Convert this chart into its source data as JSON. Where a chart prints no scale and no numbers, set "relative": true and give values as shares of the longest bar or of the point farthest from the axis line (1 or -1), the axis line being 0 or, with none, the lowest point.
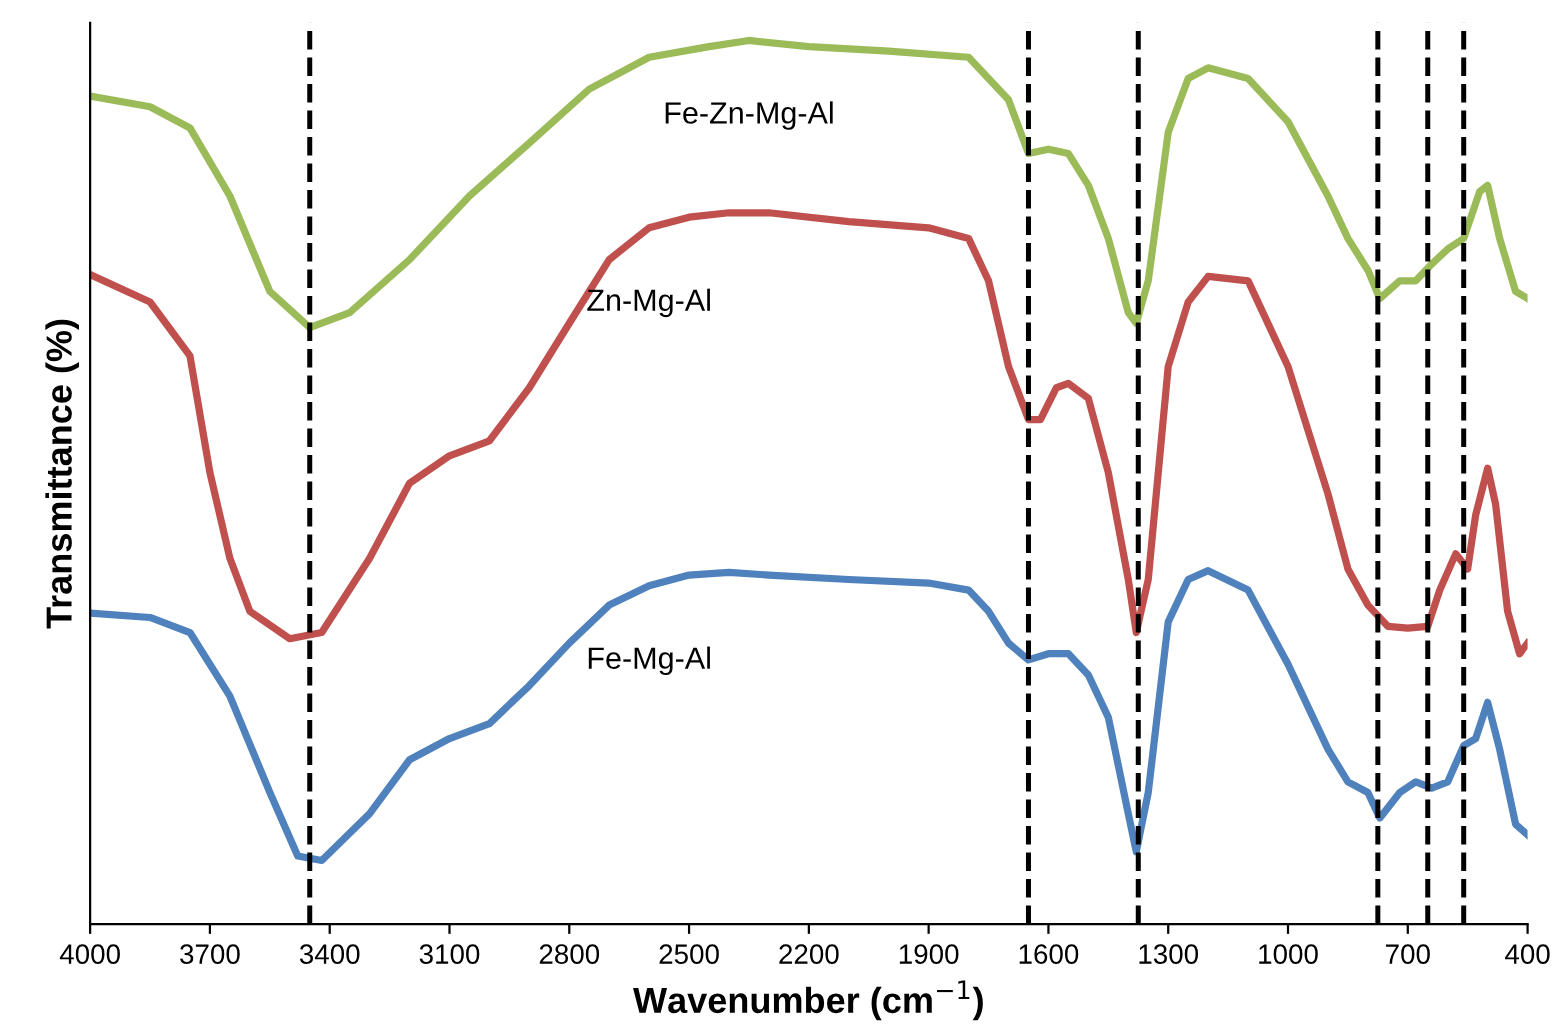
{
  "chart_data": {
    "type": "line",
    "relative": true,
    "xlabel": "Wavenumber (cm$^{−1}$)",
    "ylabel": "Transmittance (%)",
    "xlim": [
      4000,
      400
    ],
    "xticks": [
      4000,
      3700,
      3400,
      3100,
      2800,
      2500,
      2200,
      1900,
      1600,
      1300,
      1000,
      700,
      400
    ],
    "tick_labels": "x",
    "grid": false,
    "legend": false,
    "marker": "none",
    "line_style": "solid",
    "series": [
      {
        "name": "Fe-Zn-Mg-Al",
        "color": "#9bbb59",
        "x": [
          4000,
          3850,
          3750,
          3650,
          3550,
          3450,
          3350,
          3200,
          3050,
          2900,
          2750,
          2600,
          2450,
          2350,
          2200,
          2000,
          1800,
          1700,
          1650,
          1600,
          1550,
          1500,
          1450,
          1400,
          1380,
          1350,
          1300,
          1250,
          1200,
          1100,
          1000,
          900,
          850,
          800,
          770,
          720,
          680,
          640,
          600,
          560,
          520,
          500,
          470,
          430,
          400
        ],
        "values": [
          0.937,
          0.925,
          0.901,
          0.824,
          0.716,
          0.675,
          0.692,
          0.752,
          0.824,
          0.884,
          0.945,
          0.981,
          0.993,
          1,
          0.993,
          0.988,
          0.981,
          0.933,
          0.872,
          0.877,
          0.872,
          0.836,
          0.776,
          0.692,
          0.68,
          0.728,
          0.896,
          0.957,
          0.969,
          0.957,
          0.908,
          0.824,
          0.776,
          0.74,
          0.708,
          0.728,
          0.728,
          0.747,
          0.764,
          0.776,
          0.829,
          0.836,
          0.776,
          0.716,
          0.708
        ]
      },
      {
        "name": "Zn-Mg-Al",
        "color": "#c0504d",
        "x": [
          4000,
          3850,
          3750,
          3700,
          3650,
          3600,
          3500,
          3420,
          3300,
          3200,
          3100,
          3000,
          2900,
          2800,
          2700,
          2600,
          2500,
          2400,
          2300,
          2100,
          1900,
          1800,
          1750,
          1700,
          1650,
          1620,
          1580,
          1550,
          1500,
          1450,
          1400,
          1380,
          1350,
          1300,
          1250,
          1200,
          1100,
          1000,
          900,
          850,
          800,
          750,
          700,
          650,
          620,
          580,
          550,
          530,
          500,
          480,
          450,
          420,
          400
        ],
        "values": [
          0.735,
          0.704,
          0.643,
          0.511,
          0.414,
          0.354,
          0.323,
          0.33,
          0.414,
          0.499,
          0.53,
          0.547,
          0.607,
          0.68,
          0.752,
          0.788,
          0.8,
          0.805,
          0.805,
          0.795,
          0.788,
          0.776,
          0.728,
          0.631,
          0.571,
          0.571,
          0.607,
          0.612,
          0.595,
          0.511,
          0.39,
          0.33,
          0.39,
          0.631,
          0.704,
          0.733,
          0.728,
          0.631,
          0.487,
          0.402,
          0.361,
          0.337,
          0.335,
          0.337,
          0.378,
          0.419,
          0.402,
          0.463,
          0.516,
          0.475,
          0.354,
          0.306,
          0.318
        ]
      },
      {
        "name": "Fe-Mg-Al",
        "color": "#4f81bd",
        "x": [
          4000,
          3850,
          3750,
          3650,
          3550,
          3480,
          3420,
          3300,
          3200,
          3100,
          3000,
          2900,
          2800,
          2700,
          2600,
          2500,
          2400,
          2300,
          2100,
          1900,
          1800,
          1750,
          1700,
          1650,
          1600,
          1550,
          1500,
          1450,
          1400,
          1380,
          1350,
          1300,
          1250,
          1200,
          1100,
          1000,
          900,
          850,
          800,
          770,
          720,
          680,
          640,
          600,
          560,
          530,
          500,
          470,
          430,
          400
        ],
        "values": [
          0.352,
          0.347,
          0.33,
          0.258,
          0.149,
          0.077,
          0.072,
          0.125,
          0.186,
          0.21,
          0.227,
          0.27,
          0.318,
          0.361,
          0.383,
          0.395,
          0.398,
          0.395,
          0.39,
          0.386,
          0.378,
          0.354,
          0.318,
          0.299,
          0.306,
          0.306,
          0.282,
          0.234,
          0.125,
          0.082,
          0.149,
          0.342,
          0.39,
          0.4,
          0.378,
          0.294,
          0.198,
          0.161,
          0.149,
          0.12,
          0.149,
          0.161,
          0.154,
          0.161,
          0.202,
          0.21,
          0.251,
          0.198,
          0.113,
          0.101
        ]
      }
    ],
    "ref_lines": [
      {
        "axis": "x",
        "value": 3450,
        "color": "#000000",
        "line_style": "dashed"
      },
      {
        "axis": "x",
        "value": 1650,
        "color": "#000000",
        "line_style": "dashed"
      },
      {
        "axis": "x",
        "value": 1375,
        "color": "#000000",
        "line_style": "dashed"
      },
      {
        "axis": "x",
        "value": 775,
        "color": "#000000",
        "line_style": "dashed"
      },
      {
        "axis": "x",
        "value": 650,
        "color": "#000000",
        "line_style": "dashed"
      },
      {
        "axis": "x",
        "value": 560,
        "color": "#000000",
        "line_style": "dashed"
      }
    ]
  }
}
